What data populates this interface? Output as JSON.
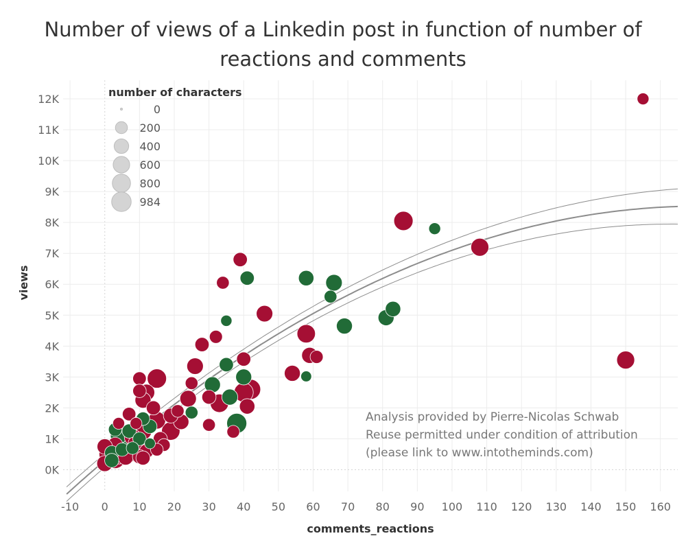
{
  "chart_data": {
    "type": "scatter",
    "title_lines": [
      "Number of views of a Linkedin post in function of number of",
      "reactions and comments"
    ],
    "xlabel": "comments_reactions",
    "ylabel": "views",
    "xlim": [
      -12,
      165
    ],
    "ylim": [
      -700,
      12600
    ],
    "x_ticks": [
      -10,
      0,
      10,
      20,
      30,
      40,
      50,
      60,
      70,
      80,
      90,
      100,
      110,
      120,
      130,
      140,
      150,
      160
    ],
    "y_ticks": [
      {
        "value": 0,
        "label": "0K"
      },
      {
        "value": 1000,
        "label": "1K"
      },
      {
        "value": 2000,
        "label": "2K"
      },
      {
        "value": 3000,
        "label": "3K"
      },
      {
        "value": 4000,
        "label": "4K"
      },
      {
        "value": 5000,
        "label": "5K"
      },
      {
        "value": 6000,
        "label": "6K"
      },
      {
        "value": 7000,
        "label": "7K"
      },
      {
        "value": 8000,
        "label": "8K"
      },
      {
        "value": 9000,
        "label": "9K"
      },
      {
        "value": 10000,
        "label": "10K"
      },
      {
        "value": 11000,
        "label": "11K"
      },
      {
        "value": 12000,
        "label": "12K"
      }
    ],
    "grid": true,
    "colors": {
      "red": "#a50f34",
      "green": "#216b37",
      "trend": "#8c8c8c",
      "legend_circle": "#d4d4d4",
      "grid": "#ececec"
    },
    "size_legend": {
      "title": "number of characters",
      "placement": "top-left",
      "entries": [
        {
          "label": "0",
          "value": 0
        },
        {
          "label": "200",
          "value": 200
        },
        {
          "label": "400",
          "value": 400
        },
        {
          "label": "600",
          "value": 600
        },
        {
          "label": "800",
          "value": 800
        },
        {
          "label": "984",
          "value": 984
        }
      ]
    },
    "trend": {
      "a": 300,
      "b": 96,
      "c": -0.28
    },
    "points": [
      {
        "x": 155,
        "y": 12000,
        "c": "red",
        "s": 150
      },
      {
        "x": 86,
        "y": 8050,
        "c": "red",
        "s": 800
      },
      {
        "x": 95,
        "y": 7800,
        "c": "green",
        "s": 150
      },
      {
        "x": 108,
        "y": 7200,
        "c": "red",
        "s": 650
      },
      {
        "x": 150,
        "y": 3550,
        "c": "red",
        "s": 650
      },
      {
        "x": 39,
        "y": 6800,
        "c": "red",
        "s": 300
      },
      {
        "x": 41,
        "y": 6200,
        "c": "green",
        "s": 300
      },
      {
        "x": 34,
        "y": 6050,
        "c": "red",
        "s": 200
      },
      {
        "x": 58,
        "y": 6200,
        "c": "green",
        "s": 400
      },
      {
        "x": 66,
        "y": 6050,
        "c": "green",
        "s": 500
      },
      {
        "x": 65,
        "y": 5600,
        "c": "green",
        "s": 200
      },
      {
        "x": 83,
        "y": 5200,
        "c": "green",
        "s": 400
      },
      {
        "x": 81,
        "y": 4920,
        "c": "green",
        "s": 450
      },
      {
        "x": 46,
        "y": 5050,
        "c": "red",
        "s": 500
      },
      {
        "x": 35,
        "y": 4820,
        "c": "green",
        "s": 120
      },
      {
        "x": 69,
        "y": 4650,
        "c": "green",
        "s": 450
      },
      {
        "x": 58,
        "y": 4400,
        "c": "red",
        "s": 700
      },
      {
        "x": 32,
        "y": 4300,
        "c": "red",
        "s": 220
      },
      {
        "x": 28,
        "y": 4050,
        "c": "red",
        "s": 300
      },
      {
        "x": 59,
        "y": 3700,
        "c": "red",
        "s": 450
      },
      {
        "x": 61,
        "y": 3650,
        "c": "red",
        "s": 220
      },
      {
        "x": 40,
        "y": 3580,
        "c": "red",
        "s": 300
      },
      {
        "x": 35,
        "y": 3400,
        "c": "green",
        "s": 300
      },
      {
        "x": 26,
        "y": 3350,
        "c": "red",
        "s": 500
      },
      {
        "x": 54,
        "y": 3120,
        "c": "red",
        "s": 450
      },
      {
        "x": 58,
        "y": 3020,
        "c": "green",
        "s": 100
      },
      {
        "x": 15,
        "y": 2950,
        "c": "red",
        "s": 800
      },
      {
        "x": 10,
        "y": 2950,
        "c": "red",
        "s": 250
      },
      {
        "x": 40,
        "y": 3000,
        "c": "green",
        "s": 450
      },
      {
        "x": 31,
        "y": 2750,
        "c": "green",
        "s": 450
      },
      {
        "x": 25,
        "y": 2800,
        "c": "red",
        "s": 200
      },
      {
        "x": 42,
        "y": 2600,
        "c": "red",
        "s": 900
      },
      {
        "x": 40,
        "y": 2500,
        "c": "red",
        "s": 800
      },
      {
        "x": 12,
        "y": 2500,
        "c": "red",
        "s": 500
      },
      {
        "x": 10,
        "y": 2550,
        "c": "red",
        "s": 250
      },
      {
        "x": 36,
        "y": 2350,
        "c": "green",
        "s": 450
      },
      {
        "x": 30,
        "y": 2350,
        "c": "red",
        "s": 300
      },
      {
        "x": 24,
        "y": 2300,
        "c": "red",
        "s": 500
      },
      {
        "x": 11,
        "y": 2250,
        "c": "red",
        "s": 450
      },
      {
        "x": 33,
        "y": 2150,
        "c": "red",
        "s": 700
      },
      {
        "x": 41,
        "y": 2050,
        "c": "red",
        "s": 400
      },
      {
        "x": 14,
        "y": 2000,
        "c": "red",
        "s": 300
      },
      {
        "x": 21,
        "y": 1900,
        "c": "red",
        "s": 200
      },
      {
        "x": 25,
        "y": 1850,
        "c": "green",
        "s": 200
      },
      {
        "x": 7,
        "y": 1800,
        "c": "red",
        "s": 250
      },
      {
        "x": 19,
        "y": 1750,
        "c": "red",
        "s": 350
      },
      {
        "x": 11,
        "y": 1650,
        "c": "green",
        "s": 250
      },
      {
        "x": 15,
        "y": 1600,
        "c": "red",
        "s": 600
      },
      {
        "x": 22,
        "y": 1550,
        "c": "red",
        "s": 400
      },
      {
        "x": 38,
        "y": 1500,
        "c": "green",
        "s": 900
      },
      {
        "x": 9,
        "y": 1500,
        "c": "red",
        "s": 150
      },
      {
        "x": 4,
        "y": 1500,
        "c": "red",
        "s": 150
      },
      {
        "x": 30,
        "y": 1450,
        "c": "red",
        "s": 200
      },
      {
        "x": 13,
        "y": 1400,
        "c": "green",
        "s": 300
      },
      {
        "x": 3,
        "y": 1300,
        "c": "green",
        "s": 250
      },
      {
        "x": 19,
        "y": 1250,
        "c": "red",
        "s": 700
      },
      {
        "x": 37,
        "y": 1230,
        "c": "red",
        "s": 200
      },
      {
        "x": 7,
        "y": 1250,
        "c": "green",
        "s": 300
      },
      {
        "x": 11,
        "y": 1250,
        "c": "red",
        "s": 600
      },
      {
        "x": 4,
        "y": 1100,
        "c": "green",
        "s": 500
      },
      {
        "x": 8,
        "y": 1050,
        "c": "red",
        "s": 500
      },
      {
        "x": 16,
        "y": 1000,
        "c": "red",
        "s": 300
      },
      {
        "x": 10,
        "y": 1000,
        "c": "green",
        "s": 250
      },
      {
        "x": 6,
        "y": 950,
        "c": "green",
        "s": 800
      },
      {
        "x": 13,
        "y": 850,
        "c": "green",
        "s": 100
      },
      {
        "x": 9,
        "y": 850,
        "c": "red",
        "s": 450
      },
      {
        "x": 17,
        "y": 800,
        "c": "red",
        "s": 200
      },
      {
        "x": 3,
        "y": 800,
        "c": "red",
        "s": 400
      },
      {
        "x": 0,
        "y": 750,
        "c": "red",
        "s": 400
      },
      {
        "x": 8,
        "y": 700,
        "c": "green",
        "s": 200
      },
      {
        "x": 15,
        "y": 650,
        "c": "red",
        "s": 200
      },
      {
        "x": 5,
        "y": 650,
        "c": "green",
        "s": 250
      },
      {
        "x": 12,
        "y": 600,
        "c": "red",
        "s": 300
      },
      {
        "x": 2,
        "y": 550,
        "c": "green",
        "s": 300
      },
      {
        "x": 7,
        "y": 520,
        "c": "red",
        "s": 600
      },
      {
        "x": 1,
        "y": 500,
        "c": "red",
        "s": 700
      },
      {
        "x": 4,
        "y": 450,
        "c": "red",
        "s": 500
      },
      {
        "x": 10,
        "y": 420,
        "c": "red",
        "s": 300
      },
      {
        "x": 11,
        "y": 380,
        "c": "red",
        "s": 300
      },
      {
        "x": 3,
        "y": 350,
        "c": "red",
        "s": 800
      },
      {
        "x": 6,
        "y": 400,
        "c": "red",
        "s": 400
      },
      {
        "x": 0,
        "y": 200,
        "c": "red",
        "s": 450
      },
      {
        "x": 2,
        "y": 300,
        "c": "green",
        "s": 300
      }
    ],
    "annotation_lines": [
      "Analysis provided by Pierre-Nicolas Schwab",
      "Reuse permitted under condition of attribution",
      "(please link to www.intotheminds.com)"
    ]
  }
}
